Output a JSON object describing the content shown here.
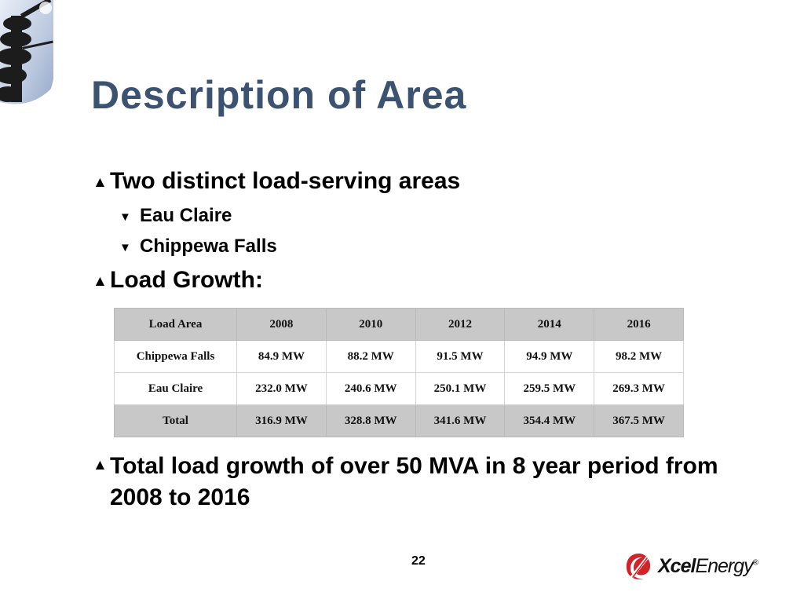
{
  "title": "Description of Area",
  "bullets": {
    "b1": "Two distinct load-serving areas",
    "b1_sub1": "Eau Claire",
    "b1_sub2": "Chippewa Falls",
    "b2": "Load Growth:",
    "b3": "Total load growth of over 50 MVA in 8 year period from 2008 to 2016"
  },
  "markers": {
    "level1": "▲",
    "level2": "▼"
  },
  "table": {
    "header": [
      "Load Area",
      "2008",
      "2010",
      "2012",
      "2014",
      "2016"
    ],
    "rows": [
      [
        "Chippewa Falls",
        "84.9 MW",
        "88.2 MW",
        "91.5 MW",
        "94.9 MW",
        "98.2 MW"
      ],
      [
        "Eau Claire",
        "232.0 MW",
        "240.6 MW",
        "250.1 MW",
        "259.5 MW",
        "269.3 MW"
      ],
      [
        "Total",
        "316.9 MW",
        "328.8 MW",
        "341.6 MW",
        "354.4 MW",
        "367.5 MW"
      ]
    ]
  },
  "page_number": "22",
  "logo": {
    "bold": "Xcel",
    "regular": "Energy",
    "mark": "®",
    "icon": "xcel-swirl-icon"
  },
  "colors": {
    "title": "#3b5370",
    "table_shade": "#c8c8c8",
    "logo_red": "#d2232a"
  }
}
